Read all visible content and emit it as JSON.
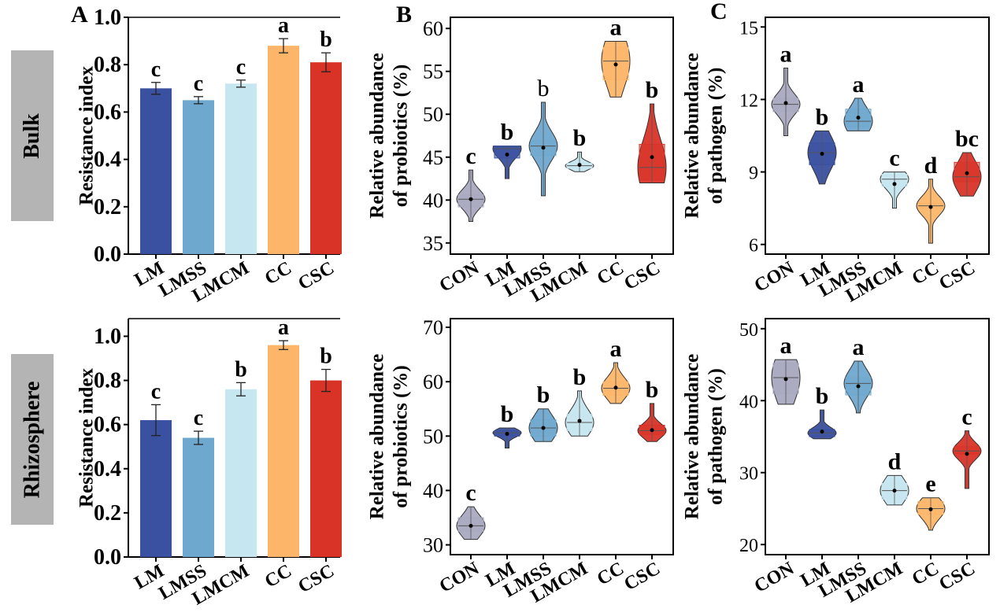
{
  "row_labels": [
    "Bulk",
    "Rhizosphere"
  ],
  "panel_letters": [
    "A",
    "B",
    "C"
  ],
  "colors": {
    "CON": "#a9a9c0",
    "LM": "#3a50a0",
    "LMSS": "#6fa8cf",
    "LMCM": "#c6e6f0",
    "CC": "#fdb669",
    "CSC": "#d93327"
  },
  "chart_data": [
    {
      "id": "A-bulk",
      "type": "bar",
      "ylabel": "Resistance index",
      "ylim": [
        0,
        1.0
      ],
      "yticks": [
        0.0,
        0.2,
        0.4,
        0.6,
        0.8,
        1.0
      ],
      "categories": [
        "LM",
        "LMSS",
        "LMCM",
        "CC",
        "CSC"
      ],
      "values": [
        0.7,
        0.65,
        0.72,
        0.88,
        0.81
      ],
      "errors": [
        0.025,
        0.015,
        0.015,
        0.03,
        0.04
      ],
      "letters": [
        "c",
        "c",
        "c",
        "a",
        "b"
      ]
    },
    {
      "id": "A-rhizosphere",
      "type": "bar",
      "ylabel": "Resistance index",
      "ylim": [
        0,
        1.08
      ],
      "yticks": [
        0.0,
        0.2,
        0.4,
        0.6,
        0.8,
        1.0
      ],
      "categories": [
        "LM",
        "LMSS",
        "LMCM",
        "CC",
        "CSC"
      ],
      "values": [
        0.62,
        0.54,
        0.76,
        0.96,
        0.8
      ],
      "errors": [
        0.07,
        0.03,
        0.03,
        0.02,
        0.05
      ],
      "letters": [
        "c",
        "c",
        "b",
        "a",
        "b"
      ]
    },
    {
      "id": "B-bulk",
      "type": "violin",
      "ylabel": [
        "Relative abundance",
        "of probiotics (%)"
      ],
      "ylim": [
        33.7,
        61.3
      ],
      "yticks": [
        35,
        40,
        45,
        50,
        55,
        60
      ],
      "categories": [
        "CON",
        "LM",
        "LMSS",
        "LMCM",
        "CC",
        "CSC"
      ],
      "stats": [
        {
          "min": 37.5,
          "q1": 39.2,
          "median": 40.1,
          "q3": 40.6,
          "max": 43.5,
          "mean": 40.1
        },
        {
          "min": 42.5,
          "q1": 44.9,
          "median": 46.0,
          "q3": 46.3,
          "max": 46.3,
          "mean": 45.3
        },
        {
          "min": 40.5,
          "q1": 45.2,
          "median": 46.3,
          "q3": 46.9,
          "max": 51.4,
          "mean": 46.1
        },
        {
          "min": 43.3,
          "q1": 43.7,
          "median": 44.0,
          "q3": 44.3,
          "max": 45.6,
          "mean": 44.1
        },
        {
          "min": 52.0,
          "q1": 54.0,
          "median": 56.2,
          "q3": 57.8,
          "max": 58.5,
          "mean": 55.8
        },
        {
          "min": 42.0,
          "q1": 42.4,
          "median": 43.8,
          "q3": 46.5,
          "max": 51.2,
          "mean": 45.0
        }
      ],
      "letters": [
        "c",
        "b",
        "b",
        "b",
        "a",
        "b"
      ]
    },
    {
      "id": "B-rhizosphere",
      "type": "violin",
      "ylabel": [
        "Relative abundance",
        "of probiotics (%)"
      ],
      "ylim": [
        28.2,
        71.6
      ],
      "yticks": [
        30,
        40,
        50,
        60,
        70
      ],
      "categories": [
        "CON",
        "LM",
        "LMSS",
        "LMCM",
        "CC",
        "CSC"
      ],
      "stats": [
        {
          "min": 31.0,
          "q1": 32.5,
          "median": 33.5,
          "q3": 35.0,
          "max": 37.0,
          "mean": 33.5
        },
        {
          "min": 47.8,
          "q1": 50.0,
          "median": 50.6,
          "q3": 51.0,
          "max": 51.5,
          "mean": 50.4
        },
        {
          "min": 49.0,
          "q1": 50.0,
          "median": 51.5,
          "q3": 53.0,
          "max": 55.0,
          "mean": 51.5
        },
        {
          "min": 50.0,
          "q1": 51.0,
          "median": 52.5,
          "q3": 54.0,
          "max": 58.3,
          "mean": 52.8
        },
        {
          "min": 56.0,
          "q1": 57.5,
          "median": 58.8,
          "q3": 60.0,
          "max": 63.5,
          "mean": 58.9
        },
        {
          "min": 49.0,
          "q1": 50.3,
          "median": 51.0,
          "q3": 52.0,
          "max": 56.0,
          "mean": 51.1
        }
      ],
      "letters": [
        "c",
        "b",
        "b",
        "b",
        "a",
        "b"
      ]
    },
    {
      "id": "C-bulk",
      "type": "violin",
      "ylabel": [
        "Relative abundance",
        "of pathogen (%)"
      ],
      "ylim": [
        5.6,
        15.4
      ],
      "yticks": [
        6,
        9,
        12,
        15
      ],
      "categories": [
        "CON",
        "LM",
        "LMSS",
        "LMCM",
        "CC",
        "CSC"
      ],
      "stats": [
        {
          "min": 10.5,
          "q1": 11.5,
          "median": 11.8,
          "q3": 12.05,
          "max": 13.3,
          "mean": 11.85
        },
        {
          "min": 8.5,
          "q1": 9.3,
          "median": 9.8,
          "q3": 10.2,
          "max": 10.7,
          "mean": 9.75
        },
        {
          "min": 10.7,
          "q1": 10.9,
          "median": 11.1,
          "q3": 11.6,
          "max": 12.05,
          "mean": 11.25
        },
        {
          "min": 7.5,
          "q1": 8.4,
          "median": 8.7,
          "q3": 8.9,
          "max": 9.0,
          "mean": 8.5
        },
        {
          "min": 6.05,
          "q1": 7.5,
          "median": 7.6,
          "q3": 7.7,
          "max": 8.7,
          "mean": 7.55
        },
        {
          "min": 8.0,
          "q1": 8.6,
          "median": 8.8,
          "q3": 9.4,
          "max": 9.8,
          "mean": 8.95
        }
      ],
      "letters": [
        "a",
        "b",
        "a",
        "c",
        "d",
        "bc"
      ]
    },
    {
      "id": "C-rhizosphere",
      "type": "violin",
      "ylabel": [
        "Relative abundance",
        "of pathogen (%)"
      ],
      "ylim": [
        18.6,
        51.4
      ],
      "yticks": [
        20,
        30,
        40,
        50
      ],
      "categories": [
        "CON",
        "LM",
        "LMSS",
        "LMCM",
        "CC",
        "CSC"
      ],
      "stats": [
        {
          "min": 39.5,
          "q1": 41.0,
          "median": 43.2,
          "q3": 45.2,
          "max": 45.7,
          "mean": 43.0
        },
        {
          "min": 34.7,
          "q1": 35.0,
          "median": 35.5,
          "q3": 36.0,
          "max": 38.7,
          "mean": 35.7
        },
        {
          "min": 38.3,
          "q1": 40.8,
          "median": 42.4,
          "q3": 43.2,
          "max": 45.5,
          "mean": 42.0
        },
        {
          "min": 25.5,
          "q1": 26.3,
          "median": 27.5,
          "q3": 28.5,
          "max": 29.6,
          "mean": 27.5
        },
        {
          "min": 22.0,
          "q1": 24.2,
          "median": 25.0,
          "q3": 26.0,
          "max": 26.5,
          "mean": 24.9
        },
        {
          "min": 27.8,
          "q1": 32.6,
          "median": 33.0,
          "q3": 33.6,
          "max": 35.8,
          "mean": 32.6
        }
      ],
      "letters": [
        "a",
        "b",
        "a",
        "d",
        "e",
        "c"
      ]
    }
  ]
}
